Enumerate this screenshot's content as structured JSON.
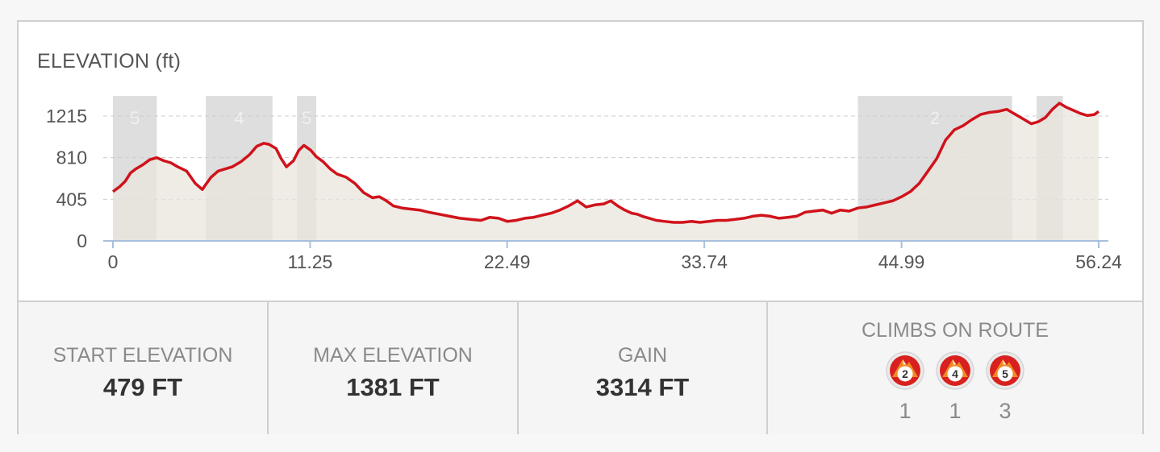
{
  "chart_data": {
    "type": "area",
    "title": "ELEVATION (ft)",
    "xlabel": "",
    "ylabel": "",
    "x_ticks": [
      "0",
      "11.25",
      "22.49",
      "33.74",
      "44.99",
      "56.24"
    ],
    "y_ticks": [
      "1215",
      "810",
      "405",
      "0"
    ],
    "xlim": [
      0,
      56.24
    ],
    "ylim": [
      0,
      1215
    ],
    "grid": "horizontal dashed",
    "colors": {
      "line": "#d0121b",
      "fill": "#e8e6dc",
      "climb_band": "#dadada"
    },
    "climb_segments": [
      {
        "label": "5",
        "x_start": 0,
        "x_end": 2.5
      },
      {
        "label": "4",
        "x_start": 5.3,
        "x_end": 9.1
      },
      {
        "label": "5",
        "x_start": 10.5,
        "x_end": 11.6
      },
      {
        "label": "2",
        "x_start": 42.5,
        "x_end": 51.3
      },
      {
        "label": "",
        "x_start": 52.7,
        "x_end": 54.2
      }
    ],
    "series": [
      {
        "x": [
          0,
          0.4,
          0.7,
          1.0,
          1.3,
          1.7,
          2.1,
          2.5,
          2.9,
          3.3,
          3.7,
          4.2,
          4.7,
          5.1,
          5.3,
          5.6,
          6.0,
          6.4,
          6.8,
          7.3,
          7.8,
          8.2,
          8.6,
          8.9,
          9.3,
          9.6,
          9.9,
          10.3,
          10.6,
          10.9,
          11.3,
          11.6,
          12.0,
          12.4,
          12.8,
          13.3,
          13.8,
          14.3,
          14.8,
          15.2,
          15.6,
          16.0,
          16.5,
          17.0,
          17.5,
          18.0,
          18.6,
          19.2,
          19.8,
          20.4,
          21.0,
          21.5,
          22.0,
          22.5,
          23.0,
          23.5,
          24.0,
          24.5,
          25.0,
          25.5,
          26.0,
          26.5,
          27.0,
          27.5,
          28.0,
          28.4,
          28.8,
          29.2,
          29.6,
          29.9,
          30.2,
          30.6,
          31.0,
          31.5,
          32.0,
          32.5,
          33.0,
          33.5,
          34.0,
          34.5,
          35.0,
          35.5,
          36.0,
          36.5,
          37.0,
          37.5,
          38.0,
          38.5,
          39.0,
          39.5,
          40.0,
          40.5,
          41.0,
          41.5,
          42.0,
          42.5,
          43.0,
          43.5,
          44.0,
          44.5,
          45.0,
          45.5,
          46.0,
          46.5,
          47.0,
          47.5,
          48.0,
          48.5,
          49.0,
          49.5,
          50.0,
          50.5,
          51.0,
          51.5,
          52.0,
          52.4,
          52.8,
          53.2,
          53.6,
          54.0,
          54.4,
          54.8,
          55.2,
          55.6,
          56.0,
          56.24
        ],
        "y": [
          479,
          530,
          580,
          660,
          700,
          740,
          790,
          810,
          780,
          760,
          720,
          680,
          560,
          500,
          550,
          620,
          680,
          700,
          720,
          770,
          840,
          920,
          950,
          940,
          900,
          800,
          720,
          780,
          880,
          930,
          880,
          820,
          770,
          700,
          650,
          620,
          560,
          470,
          420,
          430,
          390,
          340,
          320,
          310,
          300,
          280,
          260,
          240,
          220,
          210,
          200,
          230,
          220,
          190,
          200,
          220,
          230,
          250,
          270,
          300,
          340,
          390,
          330,
          350,
          360,
          390,
          340,
          300,
          270,
          260,
          240,
          220,
          200,
          190,
          180,
          180,
          190,
          180,
          190,
          200,
          200,
          210,
          220,
          240,
          250,
          240,
          220,
          230,
          240,
          280,
          290,
          300,
          270,
          300,
          290,
          320,
          330,
          350,
          370,
          390,
          430,
          480,
          560,
          680,
          800,
          980,
          1080,
          1120,
          1180,
          1230,
          1250,
          1260,
          1280,
          1230,
          1180,
          1140,
          1160,
          1200,
          1280,
          1340,
          1300,
          1270,
          1240,
          1220,
          1230,
          1260
        ]
      }
    ]
  },
  "stats": [
    {
      "label": "START ELEVATION",
      "value": "479 FT"
    },
    {
      "label": "MAX ELEVATION",
      "value": "1381 FT"
    },
    {
      "label": "GAIN",
      "value": "3314 FT"
    }
  ],
  "climbs": {
    "label": "CLIMBS ON ROUTE",
    "items": [
      {
        "category": "2",
        "count": "1",
        "icon": "climb-category-2-icon"
      },
      {
        "category": "4",
        "count": "1",
        "icon": "climb-category-4-icon"
      },
      {
        "category": "5",
        "count": "3",
        "icon": "climb-category-5-icon"
      }
    ]
  }
}
